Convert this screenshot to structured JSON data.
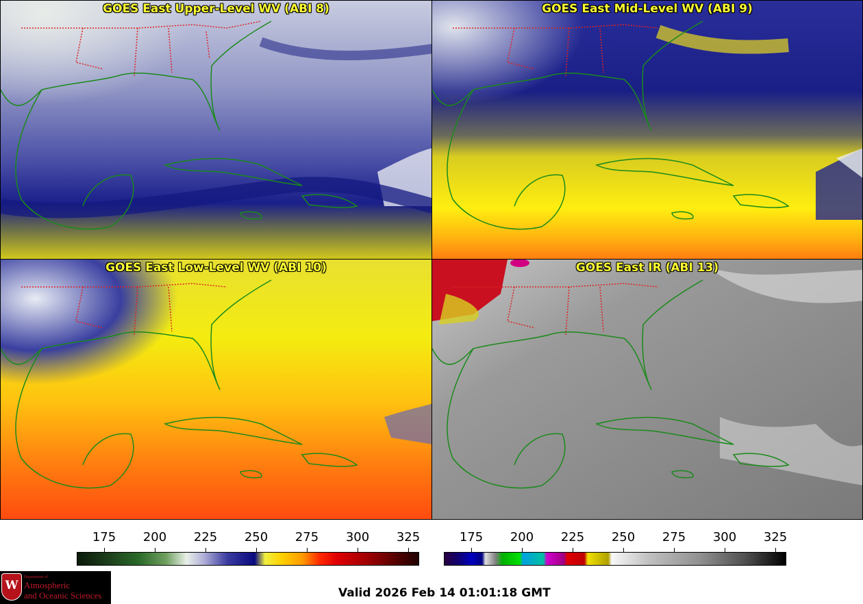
{
  "panels": [
    {
      "title": "GOES East Upper-Level WV (ABI 8)"
    },
    {
      "title": "GOES East Mid-Level WV (ABI 9)"
    },
    {
      "title": "GOES East Low-Level WV (ABI 10)"
    },
    {
      "title": "GOES East IR (ABI 13)"
    }
  ],
  "colorbars": {
    "wv": {
      "ticks": [
        "175",
        "200",
        "225",
        "250",
        "275",
        "300",
        "325"
      ]
    },
    "ir": {
      "ticks": [
        "175",
        "200",
        "225",
        "250",
        "275",
        "300",
        "325"
      ]
    }
  },
  "logo": {
    "seal_letter": "W",
    "line1": "Department of",
    "line2": "Atmospheric",
    "line3": "and Oceanic Sciences"
  },
  "valid_time": "Valid 2026 Feb 14 01:01:18 GMT",
  "colors": {
    "title_text": "#ffff33",
    "coastline": "#1a8a1a",
    "state_borders": "#dd2222"
  }
}
